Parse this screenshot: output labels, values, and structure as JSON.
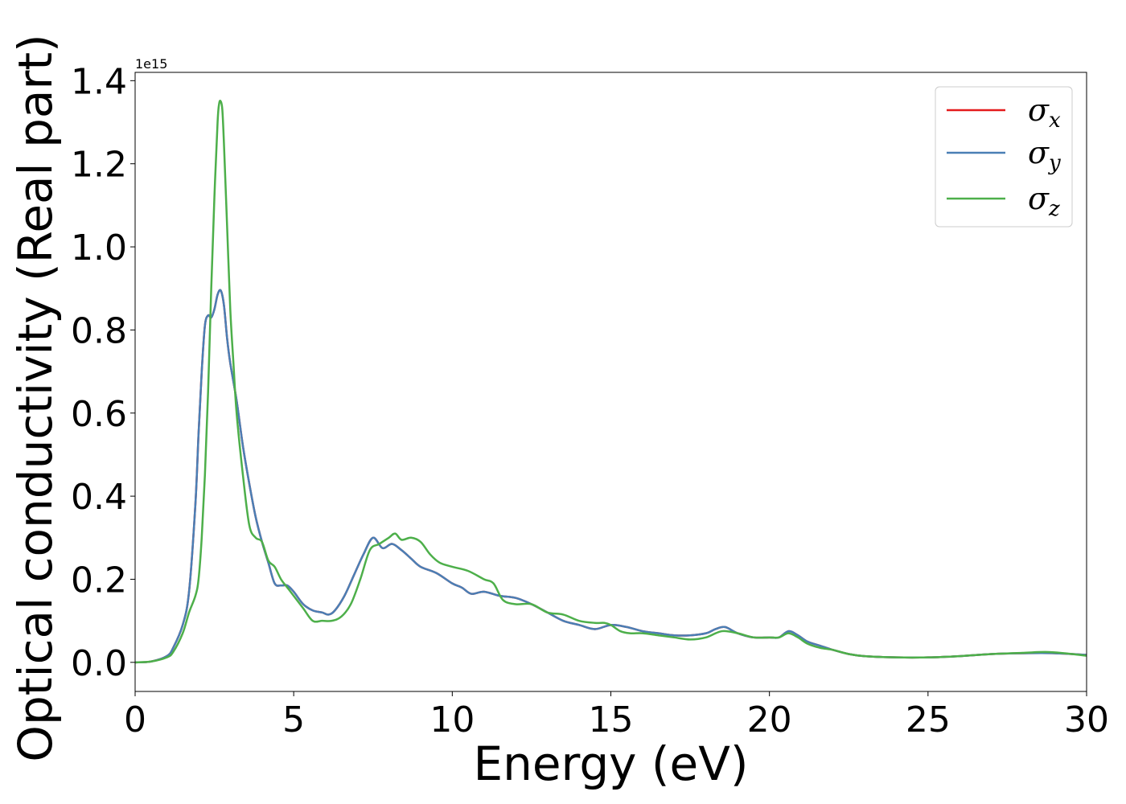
{
  "chart_data": {
    "type": "line",
    "xlabel": "Energy (eV)",
    "ylabel": "Optical conductivity (Real part)",
    "y_offset_text": "1e15",
    "y_multiplier": 1000000000000000.0,
    "xlim": [
      0,
      30
    ],
    "ylim": [
      -0.07,
      1.42
    ],
    "xticks": [
      0,
      5,
      10,
      15,
      20,
      25,
      30
    ],
    "xtick_labels": [
      "0",
      "5",
      "10",
      "15",
      "20",
      "25",
      "30"
    ],
    "yticks": [
      0.0,
      0.2,
      0.4,
      0.6,
      0.8,
      1.0,
      1.2,
      1.4
    ],
    "ytick_labels": [
      "0.0",
      "0.2",
      "0.4",
      "0.6",
      "0.8",
      "1.0",
      "1.2",
      "1.4"
    ],
    "grid": false,
    "legend_position": "top-right",
    "series": [
      {
        "name": "σx",
        "symbol": "σ",
        "subscript": "x",
        "color": "#e41a1c",
        "x": [
          0,
          0.5,
          1.0,
          1.2,
          1.5,
          1.7,
          1.9,
          2.0,
          2.1,
          2.2,
          2.3,
          2.4,
          2.5,
          2.6,
          2.7,
          2.8,
          2.9,
          3.0,
          3.2,
          3.4,
          3.6,
          3.8,
          4.0,
          4.2,
          4.4,
          4.6,
          4.8,
          5.0,
          5.3,
          5.6,
          5.9,
          6.1,
          6.3,
          6.6,
          6.9,
          7.2,
          7.5,
          7.8,
          8.1,
          8.4,
          8.7,
          9.0,
          9.5,
          10.0,
          10.3,
          10.6,
          11.0,
          11.5,
          12.0,
          12.5,
          13.0,
          13.5,
          14.0,
          14.5,
          15.0,
          15.5,
          16.0,
          16.5,
          17.0,
          17.5,
          18.0,
          18.3,
          18.6,
          19.0,
          19.5,
          20.0,
          20.3,
          20.6,
          20.9,
          21.2,
          21.6,
          22.0,
          22.5,
          23.0,
          24.0,
          25.0,
          26.0,
          27.0,
          28.0,
          29.0,
          30.0
        ],
        "y": [
          0.0,
          0.002,
          0.015,
          0.035,
          0.09,
          0.17,
          0.38,
          0.55,
          0.7,
          0.81,
          0.835,
          0.83,
          0.85,
          0.885,
          0.895,
          0.86,
          0.78,
          0.72,
          0.63,
          0.52,
          0.43,
          0.35,
          0.29,
          0.24,
          0.19,
          0.185,
          0.185,
          0.17,
          0.14,
          0.125,
          0.12,
          0.115,
          0.125,
          0.16,
          0.21,
          0.26,
          0.3,
          0.275,
          0.285,
          0.27,
          0.25,
          0.23,
          0.215,
          0.19,
          0.18,
          0.165,
          0.17,
          0.16,
          0.155,
          0.14,
          0.12,
          0.1,
          0.09,
          0.08,
          0.09,
          0.085,
          0.075,
          0.07,
          0.065,
          0.065,
          0.07,
          0.08,
          0.085,
          0.07,
          0.06,
          0.06,
          0.06,
          0.075,
          0.065,
          0.05,
          0.04,
          0.03,
          0.02,
          0.015,
          0.012,
          0.012,
          0.015,
          0.02,
          0.022,
          0.022,
          0.018
        ]
      },
      {
        "name": "σy",
        "symbol": "σ",
        "subscript": "y",
        "color": "#4a7fb5",
        "x": [
          0,
          0.5,
          1.0,
          1.2,
          1.5,
          1.7,
          1.9,
          2.0,
          2.1,
          2.2,
          2.3,
          2.4,
          2.5,
          2.6,
          2.7,
          2.8,
          2.9,
          3.0,
          3.2,
          3.4,
          3.6,
          3.8,
          4.0,
          4.2,
          4.4,
          4.6,
          4.8,
          5.0,
          5.3,
          5.6,
          5.9,
          6.1,
          6.3,
          6.6,
          6.9,
          7.2,
          7.5,
          7.8,
          8.1,
          8.4,
          8.7,
          9.0,
          9.5,
          10.0,
          10.3,
          10.6,
          11.0,
          11.5,
          12.0,
          12.5,
          13.0,
          13.5,
          14.0,
          14.5,
          15.0,
          15.5,
          16.0,
          16.5,
          17.0,
          17.5,
          18.0,
          18.3,
          18.6,
          19.0,
          19.5,
          20.0,
          20.3,
          20.6,
          20.9,
          21.2,
          21.6,
          22.0,
          22.5,
          23.0,
          24.0,
          25.0,
          26.0,
          27.0,
          28.0,
          29.0,
          30.0
        ],
        "y": [
          0.0,
          0.002,
          0.015,
          0.035,
          0.09,
          0.17,
          0.38,
          0.55,
          0.7,
          0.81,
          0.835,
          0.83,
          0.85,
          0.885,
          0.895,
          0.86,
          0.78,
          0.72,
          0.63,
          0.52,
          0.43,
          0.35,
          0.29,
          0.24,
          0.19,
          0.185,
          0.185,
          0.17,
          0.14,
          0.125,
          0.12,
          0.115,
          0.125,
          0.16,
          0.21,
          0.26,
          0.3,
          0.275,
          0.285,
          0.27,
          0.25,
          0.23,
          0.215,
          0.19,
          0.18,
          0.165,
          0.17,
          0.16,
          0.155,
          0.14,
          0.12,
          0.1,
          0.09,
          0.08,
          0.09,
          0.085,
          0.075,
          0.07,
          0.065,
          0.065,
          0.07,
          0.08,
          0.085,
          0.07,
          0.06,
          0.06,
          0.06,
          0.075,
          0.065,
          0.05,
          0.04,
          0.03,
          0.02,
          0.015,
          0.012,
          0.012,
          0.015,
          0.02,
          0.022,
          0.022,
          0.018
        ]
      },
      {
        "name": "σz",
        "symbol": "σ",
        "subscript": "z",
        "color": "#4daf4a",
        "x": [
          0,
          0.5,
          1.0,
          1.2,
          1.5,
          1.7,
          1.9,
          2.0,
          2.1,
          2.2,
          2.3,
          2.4,
          2.5,
          2.6,
          2.65,
          2.7,
          2.75,
          2.8,
          2.9,
          3.0,
          3.1,
          3.2,
          3.4,
          3.6,
          3.8,
          4.0,
          4.2,
          4.4,
          4.6,
          4.8,
          5.0,
          5.3,
          5.6,
          5.9,
          6.2,
          6.5,
          6.8,
          7.1,
          7.4,
          7.7,
          8.0,
          8.2,
          8.4,
          8.7,
          9.0,
          9.3,
          9.6,
          10.0,
          10.5,
          11.0,
          11.3,
          11.6,
          12.0,
          12.5,
          13.0,
          13.5,
          14.0,
          14.5,
          14.8,
          15.0,
          15.3,
          15.6,
          16.0,
          16.5,
          17.0,
          17.5,
          18.0,
          18.5,
          19.0,
          19.5,
          20.0,
          20.3,
          20.6,
          20.9,
          21.2,
          21.6,
          22.0,
          22.5,
          23.0,
          24.0,
          25.0,
          26.0,
          27.0,
          28.0,
          28.7,
          29.3,
          30.0
        ],
        "y": [
          0.0,
          0.002,
          0.012,
          0.025,
          0.07,
          0.12,
          0.16,
          0.2,
          0.3,
          0.45,
          0.65,
          0.9,
          1.12,
          1.3,
          1.345,
          1.35,
          1.33,
          1.25,
          1.05,
          0.85,
          0.72,
          0.6,
          0.45,
          0.33,
          0.3,
          0.29,
          0.245,
          0.23,
          0.2,
          0.18,
          0.16,
          0.13,
          0.1,
          0.1,
          0.1,
          0.11,
          0.14,
          0.2,
          0.27,
          0.285,
          0.3,
          0.31,
          0.295,
          0.3,
          0.29,
          0.26,
          0.24,
          0.23,
          0.22,
          0.2,
          0.19,
          0.15,
          0.14,
          0.14,
          0.12,
          0.115,
          0.1,
          0.095,
          0.095,
          0.09,
          0.075,
          0.07,
          0.07,
          0.065,
          0.06,
          0.055,
          0.06,
          0.075,
          0.07,
          0.06,
          0.06,
          0.06,
          0.07,
          0.06,
          0.045,
          0.035,
          0.03,
          0.02,
          0.015,
          0.012,
          0.012,
          0.015,
          0.02,
          0.023,
          0.025,
          0.022,
          0.016
        ]
      }
    ]
  }
}
